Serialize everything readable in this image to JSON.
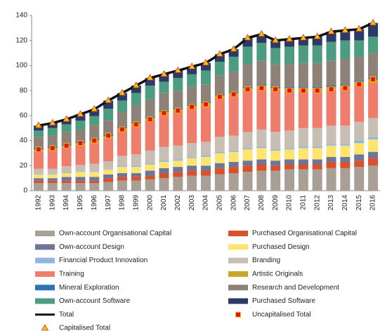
{
  "chart_data": {
    "type": "bar",
    "stacked": true,
    "categories": [
      "1992",
      "1993",
      "1994",
      "1995",
      "1996",
      "1997",
      "1998",
      "1999",
      "2000",
      "2001",
      "2002",
      "2003",
      "2004",
      "2005",
      "2006",
      "2007",
      "2008",
      "2009",
      "2010",
      "2011",
      "2012",
      "2013",
      "2014",
      "2015",
      "2016"
    ],
    "ylim": [
      0,
      140
    ],
    "yticks": [
      0,
      20,
      40,
      60,
      80,
      100,
      120,
      140
    ],
    "series": [
      {
        "name": "Own-account Organisational Capital",
        "color": "#a8a095",
        "values": [
          6,
          6,
          6,
          6,
          6,
          7,
          8,
          8,
          9,
          10,
          11,
          12,
          12,
          13,
          14,
          15,
          16,
          16,
          17,
          17,
          17,
          18,
          18,
          19,
          20
        ]
      },
      {
        "name": "Purchased Organisational Capital",
        "color": "#d9502c",
        "values": [
          2,
          2,
          2,
          2,
          2,
          3,
          3,
          3,
          3,
          4,
          4,
          4,
          4,
          5,
          5,
          5,
          5,
          4,
          4,
          4,
          4,
          5,
          5,
          5,
          6
        ]
      },
      {
        "name": "Own-account Design",
        "color": "#6d7599",
        "values": [
          2,
          2,
          3,
          3,
          3,
          3,
          3,
          3,
          4,
          4,
          4,
          4,
          4,
          4,
          4,
          4,
          4,
          4,
          4,
          4,
          4,
          4,
          4,
          5,
          5
        ]
      },
      {
        "name": "Purchased Design",
        "color": "#fde46c",
        "values": [
          3,
          3,
          3,
          4,
          4,
          4,
          5,
          5,
          5,
          5,
          5,
          6,
          7,
          8,
          8,
          9,
          9,
          8,
          8,
          9,
          9,
          9,
          9,
          9,
          10
        ]
      },
      {
        "name": "Financial Product Innovation",
        "color": "#8fb6e2",
        "values": [
          0.5,
          0.5,
          0.5,
          0.5,
          0.5,
          0.5,
          1,
          1,
          1,
          1,
          1,
          1,
          1,
          1,
          1,
          1,
          1,
          1,
          1,
          1,
          1,
          1,
          1,
          2,
          2
        ]
      },
      {
        "name": "Branding",
        "color": "#c9beb4",
        "values": [
          4,
          4,
          5,
          5,
          6,
          6,
          8,
          9,
          10,
          11,
          11,
          11,
          11,
          12,
          12,
          13,
          14,
          14,
          14,
          15,
          15,
          15,
          15,
          15,
          15
        ]
      },
      {
        "name": "Training",
        "color": "#ef7d6c",
        "values": [
          14,
          15,
          15,
          16,
          17,
          18,
          20,
          23,
          24,
          26,
          27,
          28,
          29,
          31,
          32,
          33,
          33,
          33,
          32,
          30,
          30,
          29,
          30,
          29,
          28
        ]
      },
      {
        "name": "Artistic Originals",
        "color": "#c9a528",
        "values": [
          1.5,
          1.5,
          1.5,
          1.5,
          2,
          2,
          2,
          2,
          2,
          2,
          2,
          2,
          2,
          2,
          2,
          2,
          2,
          2,
          2,
          2,
          2,
          2,
          2,
          3,
          3
        ]
      },
      {
        "name": "Mineral Exploration",
        "color": "#2e73b5",
        "values": [
          1,
          1,
          1,
          1,
          1,
          1,
          1,
          1,
          1,
          1,
          1,
          1,
          1,
          1,
          1,
          1,
          1,
          1,
          1,
          1,
          1,
          1,
          1,
          1,
          1
        ]
      },
      {
        "name": "Research and Development",
        "color": "#8e8278",
        "values": [
          9,
          9,
          10,
          10,
          11,
          12,
          12,
          13,
          14,
          14,
          14,
          14,
          14,
          15,
          16,
          18,
          19,
          18,
          18,
          19,
          19,
          20,
          20,
          19,
          20
        ]
      },
      {
        "name": "Own-account Software",
        "color": "#4b9c80",
        "values": [
          5,
          6,
          6,
          7,
          7,
          9,
          9,
          10,
          11,
          9,
          10,
          10,
          11,
          11,
          12,
          14,
          14,
          13,
          14,
          14,
          14,
          15,
          15,
          13,
          13
        ]
      },
      {
        "name": "Purchased Software",
        "color": "#2c3a68",
        "values": [
          4,
          4,
          4,
          5,
          5.5,
          6.5,
          6,
          6,
          6,
          6,
          6,
          6,
          6,
          6,
          6,
          7,
          7,
          6,
          6,
          6,
          7,
          8,
          8,
          9,
          11
        ]
      },
      {
        "name": "Total",
        "type": "line",
        "color": "#111111",
        "values": [
          52,
          54,
          57,
          61,
          65,
          72,
          78,
          84,
          90,
          93,
          96,
          99,
          102,
          109,
          113,
          122,
          125,
          120,
          121,
          122,
          123,
          127,
          128,
          129,
          134
        ]
      },
      {
        "name": "Uncapitalised Total",
        "type": "square",
        "color": "#e8101a",
        "values": [
          33,
          34,
          36,
          38,
          40,
          44,
          49,
          53,
          57,
          62,
          64,
          67,
          69,
          75,
          77,
          81,
          82,
          81,
          80,
          80,
          80,
          81,
          82,
          85,
          89
        ]
      },
      {
        "name": "Capitalised Total",
        "type": "triangle",
        "color": "#f7c000",
        "values": [
          52,
          54,
          57,
          61,
          65,
          72,
          78,
          84,
          90,
          93,
          96,
          99,
          102,
          109,
          113,
          122,
          125,
          120,
          121,
          122,
          123,
          127,
          128,
          129,
          134
        ]
      }
    ]
  }
}
